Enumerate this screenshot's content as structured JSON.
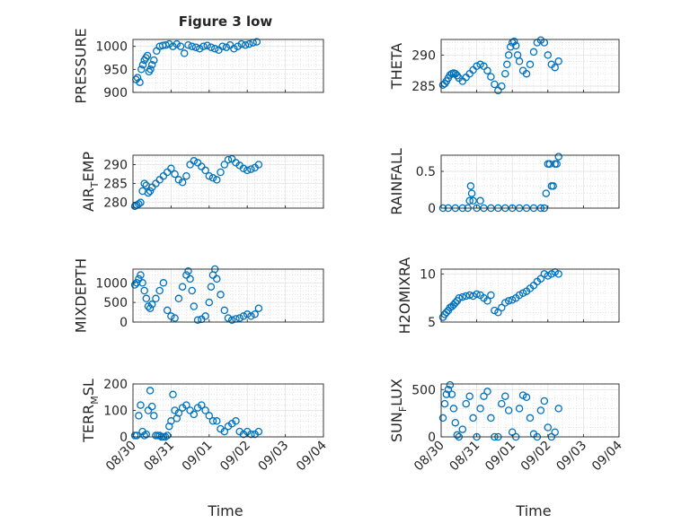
{
  "figure": {
    "title": "Figure 3 low",
    "time_xlabel": "Time",
    "time_ticks": [
      "08/30",
      "08/31",
      "09/01",
      "09/02",
      "09/03",
      "09/04"
    ]
  },
  "style": {
    "marker_color": "#0072BD",
    "axis_color": "#262626",
    "grid_color": "#d4d4d4",
    "background": "#ffffff"
  },
  "chart_data": [
    {
      "type": "scatter",
      "ylabel": "PRESSURE",
      "ylim": [
        900,
        1015
      ],
      "ytick_labels": [
        "900",
        "950",
        "1000"
      ],
      "yticks": [
        900,
        950,
        1000
      ],
      "x": [
        0.08,
        0.12,
        0.18,
        0.22,
        0.26,
        0.3,
        0.34,
        0.38,
        0.42,
        0.46,
        0.5,
        0.55,
        0.62,
        0.7,
        0.78,
        0.86,
        0.95,
        1.05,
        1.15,
        1.25,
        1.35,
        1.45,
        1.55,
        1.65,
        1.75,
        1.85,
        1.95,
        2.05,
        2.15,
        2.25,
        2.35,
        2.45,
        2.55,
        2.65,
        2.75,
        2.85,
        2.95,
        3.05,
        3.15,
        3.25
      ],
      "y": [
        928,
        932,
        922,
        950,
        960,
        970,
        975,
        980,
        945,
        950,
        960,
        970,
        990,
        1000,
        1002,
        1003,
        1005,
        1000,
        1005,
        1000,
        985,
        1003,
        1000,
        998,
        995,
        1000,
        1002,
        998,
        995,
        992,
        1000,
        998,
        1003,
        995,
        1000,
        1005,
        1003,
        1005,
        1008,
        1010
      ]
    },
    {
      "type": "scatter",
      "ylabel": "THETA",
      "ylim": [
        284,
        292.5
      ],
      "ytick_labels": [
        "285",
        "290"
      ],
      "yticks": [
        285,
        290
      ],
      "x": [
        0.05,
        0.1,
        0.15,
        0.2,
        0.25,
        0.3,
        0.35,
        0.4,
        0.45,
        0.5,
        0.6,
        0.7,
        0.8,
        0.9,
        1.0,
        1.1,
        1.2,
        1.3,
        1.4,
        1.5,
        1.6,
        1.7,
        1.8,
        1.85,
        1.9,
        1.95,
        2.0,
        2.05,
        2.1,
        2.15,
        2.2,
        2.3,
        2.4,
        2.5,
        2.6,
        2.7,
        2.8,
        2.9,
        3.0,
        3.1,
        3.2,
        3.3
      ],
      "y": [
        285.2,
        285.4,
        285.8,
        286.3,
        286.8,
        287,
        287.1,
        287,
        286.7,
        286.3,
        285.8,
        286.4,
        287,
        287.6,
        288.2,
        288.5,
        288.2,
        287.5,
        286.5,
        285.3,
        284.3,
        285,
        287,
        288.5,
        290,
        291.3,
        292,
        292.2,
        291.5,
        290,
        289,
        287.5,
        287,
        288.5,
        290.5,
        292,
        292.4,
        292,
        290,
        288.5,
        288,
        289
      ]
    },
    {
      "type": "scatter",
      "ylabel": "AIR_TEMP",
      "ylabel_display": [
        "AIR",
        "T",
        "EMP"
      ],
      "ylim": [
        278.5,
        292.5
      ],
      "ytick_labels": [
        "280",
        "285",
        "290"
      ],
      "yticks": [
        280,
        285,
        290
      ],
      "x": [
        0.05,
        0.1,
        0.15,
        0.2,
        0.25,
        0.3,
        0.35,
        0.4,
        0.45,
        0.5,
        0.6,
        0.7,
        0.8,
        0.9,
        1.0,
        1.1,
        1.2,
        1.3,
        1.4,
        1.5,
        1.6,
        1.7,
        1.8,
        1.9,
        2.0,
        2.1,
        2.2,
        2.3,
        2.4,
        2.5,
        2.6,
        2.7,
        2.8,
        2.9,
        3.0,
        3.1,
        3.2,
        3.3
      ],
      "y": [
        279,
        279.3,
        279.6,
        280,
        283,
        285,
        284.5,
        282.5,
        283,
        284,
        285,
        286,
        287,
        288,
        289,
        287.5,
        286,
        285.3,
        287,
        290,
        291,
        290.5,
        289.5,
        288.5,
        287,
        286.5,
        286,
        288,
        290,
        291.3,
        291.5,
        290.5,
        289.8,
        289,
        288.5,
        288.8,
        289.2,
        290
      ]
    },
    {
      "type": "scatter",
      "ylabel": "RAINFALL",
      "ylim": [
        0,
        0.72
      ],
      "ytick_labels": [
        "0",
        "0.5"
      ],
      "yticks": [
        0,
        0.5
      ],
      "x": [
        0.05,
        0.2,
        0.4,
        0.6,
        0.75,
        0.8,
        0.83,
        0.86,
        0.9,
        1.0,
        1.1,
        1.2,
        1.4,
        1.6,
        1.8,
        2.0,
        2.2,
        2.4,
        2.6,
        2.8,
        2.9,
        2.95,
        3.0,
        3.05,
        3.1,
        3.15,
        3.2,
        3.25,
        3.3
      ],
      "y": [
        0,
        0,
        0,
        0,
        0,
        0.1,
        0.3,
        0.2,
        0.1,
        0,
        0.1,
        0,
        0,
        0,
        0,
        0,
        0,
        0,
        0,
        0,
        0,
        0.2,
        0.6,
        0.6,
        0.3,
        0.3,
        0.6,
        0.6,
        0.7
      ]
    },
    {
      "type": "scatter",
      "ylabel": "MIXDEPTH",
      "ylim": [
        0,
        1350
      ],
      "ytick_labels": [
        "0",
        "500",
        "1000"
      ],
      "yticks": [
        0,
        500,
        1000
      ],
      "x": [
        0.05,
        0.1,
        0.15,
        0.2,
        0.25,
        0.3,
        0.35,
        0.4,
        0.45,
        0.5,
        0.6,
        0.7,
        0.8,
        0.9,
        1.0,
        1.1,
        1.2,
        1.3,
        1.4,
        1.45,
        1.5,
        1.55,
        1.6,
        1.7,
        1.8,
        1.9,
        2.0,
        2.05,
        2.1,
        2.15,
        2.2,
        2.3,
        2.4,
        2.5,
        2.6,
        2.7,
        2.8,
        2.9,
        3.0,
        3.1,
        3.2,
        3.3
      ],
      "y": [
        950,
        1000,
        1100,
        1200,
        1000,
        800,
        600,
        400,
        350,
        450,
        600,
        800,
        1000,
        300,
        150,
        100,
        600,
        900,
        1200,
        1300,
        1100,
        800,
        400,
        50,
        70,
        150,
        500,
        900,
        1200,
        1350,
        1100,
        700,
        300,
        100,
        50,
        80,
        100,
        150,
        200,
        150,
        200,
        350
      ]
    },
    {
      "type": "scatter",
      "ylabel": "H2OMIXRA",
      "ylim": [
        5,
        10.5
      ],
      "ytick_labels": [
        "5",
        "10"
      ],
      "yticks": [
        5,
        10
      ],
      "x": [
        0.05,
        0.1,
        0.15,
        0.2,
        0.25,
        0.3,
        0.35,
        0.4,
        0.45,
        0.5,
        0.6,
        0.7,
        0.8,
        0.9,
        1.0,
        1.1,
        1.2,
        1.3,
        1.4,
        1.5,
        1.6,
        1.7,
        1.8,
        1.9,
        2.0,
        2.1,
        2.2,
        2.3,
        2.4,
        2.5,
        2.6,
        2.7,
        2.8,
        2.9,
        3.0,
        3.1,
        3.2,
        3.3
      ],
      "y": [
        5.5,
        5.8,
        6,
        6.2,
        6.5,
        6.6,
        6.8,
        7,
        7.2,
        7.5,
        7.6,
        7.7,
        7.8,
        7.7,
        7.9,
        7.8,
        7.5,
        7.2,
        7.8,
        6.2,
        6,
        6.5,
        7,
        7.2,
        7.3,
        7.5,
        7.8,
        8,
        8.2,
        8.5,
        8.8,
        9.2,
        9.5,
        10,
        9.8,
        10,
        10.2,
        10
      ]
    },
    {
      "type": "scatter",
      "ylabel": "TERR_MSL",
      "ylabel_display": [
        "TERR",
        "M",
        "SL"
      ],
      "ylim": [
        0,
        200
      ],
      "ytick_labels": [
        "0",
        "100",
        "200"
      ],
      "yticks": [
        0,
        100,
        200
      ],
      "x": [
        0.05,
        0.1,
        0.15,
        0.2,
        0.25,
        0.3,
        0.35,
        0.4,
        0.45,
        0.5,
        0.55,
        0.6,
        0.65,
        0.7,
        0.75,
        0.8,
        0.85,
        0.9,
        0.95,
        1.0,
        1.05,
        1.1,
        1.15,
        1.2,
        1.3,
        1.4,
        1.5,
        1.6,
        1.7,
        1.8,
        1.9,
        2.0,
        2.1,
        2.2,
        2.3,
        2.4,
        2.5,
        2.6,
        2.7,
        2.8,
        2.9,
        3.0,
        3.1,
        3.2,
        3.3
      ],
      "y": [
        5,
        5,
        80,
        120,
        20,
        5,
        10,
        100,
        175,
        115,
        80,
        5,
        5,
        5,
        0,
        0,
        0,
        5,
        40,
        60,
        160,
        100,
        70,
        90,
        110,
        120,
        100,
        85,
        110,
        120,
        100,
        80,
        60,
        60,
        30,
        20,
        40,
        50,
        60,
        20,
        10,
        20,
        10,
        10,
        20
      ]
    },
    {
      "type": "scatter",
      "ylabel": "SUN_FLUX",
      "ylabel_display": [
        "SUN",
        "F",
        "LUX"
      ],
      "ylim": [
        0,
        560
      ],
      "ytick_labels": [
        "0",
        "500"
      ],
      "yticks": [
        0,
        500
      ],
      "x": [
        0.05,
        0.1,
        0.15,
        0.2,
        0.25,
        0.3,
        0.35,
        0.4,
        0.45,
        0.5,
        0.6,
        0.7,
        0.8,
        0.9,
        1.0,
        1.1,
        1.2,
        1.3,
        1.4,
        1.5,
        1.6,
        1.7,
        1.8,
        1.9,
        2.0,
        2.1,
        2.2,
        2.3,
        2.4,
        2.5,
        2.6,
        2.7,
        2.8,
        2.9,
        3.0,
        3.1,
        3.2,
        3.3
      ],
      "y": [
        200,
        350,
        450,
        500,
        550,
        450,
        300,
        150,
        20,
        0,
        80,
        350,
        430,
        200,
        0,
        300,
        430,
        480,
        200,
        0,
        0,
        350,
        430,
        280,
        50,
        0,
        300,
        440,
        420,
        200,
        30,
        0,
        280,
        380,
        100,
        0,
        50,
        300
      ]
    }
  ]
}
